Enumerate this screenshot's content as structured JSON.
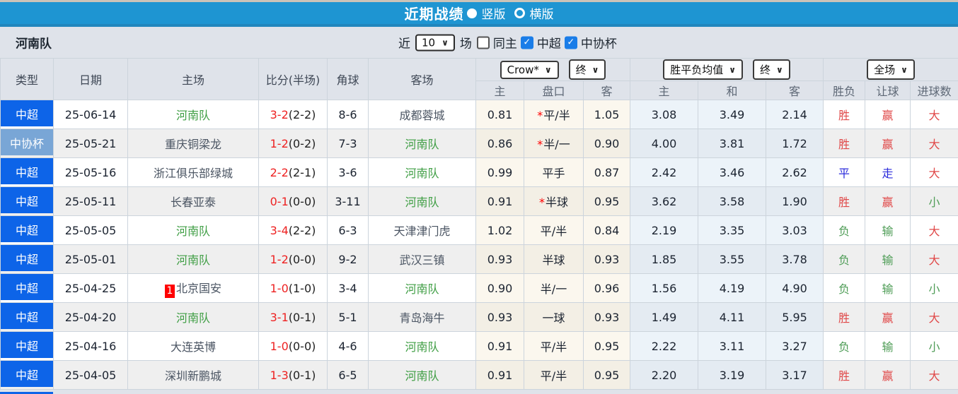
{
  "title_bar": {
    "title": "近期战绩",
    "layout_options": [
      {
        "label": "竖版",
        "selected": true
      },
      {
        "label": "横版",
        "selected": false
      }
    ]
  },
  "controls": {
    "team_name": "河南队",
    "recent_label": "近",
    "recent_count": "10",
    "matches_label": "场",
    "filters": [
      {
        "label": "同主",
        "checked": false
      },
      {
        "label": "中超",
        "checked": true
      },
      {
        "label": "中协杯",
        "checked": true
      }
    ]
  },
  "table": {
    "columns_left": [
      "类型",
      "日期",
      "主场",
      "比分(半场)",
      "角球",
      "客场"
    ],
    "odds_group": {
      "dropdown1": "Crow*",
      "dropdown2": "终",
      "subcolumns": [
        "主",
        "盘口",
        "客"
      ]
    },
    "avg_group": {
      "dropdown1": "胜平负均值",
      "dropdown2": "终",
      "subcolumns": [
        "主",
        "和",
        "客"
      ]
    },
    "result_group": {
      "dropdown": "全场",
      "subcolumns": [
        "胜负",
        "让球",
        "进球数"
      ]
    },
    "rows": [
      {
        "type": "中超",
        "type_style": "csl",
        "date": "25-06-14",
        "home": "河南队",
        "home_is_henan": true,
        "home_rank": "",
        "score": "3-2",
        "half_score": "(2-2)",
        "corners": "8-6",
        "away": "成都蓉城",
        "away_is_henan": false,
        "odds_home": "0.81",
        "handicap": "平/半",
        "handicap_star": true,
        "odds_away": "1.05",
        "avg_home": "3.08",
        "avg_draw": "3.49",
        "avg_away": "2.14",
        "result": "胜",
        "result_color": "red",
        "handicap_result": "赢",
        "handicap_result_color": "red",
        "goals_result": "大",
        "goals_result_color": "red"
      },
      {
        "type": "中协杯",
        "type_style": "cup",
        "date": "25-05-21",
        "home": "重庆铜梁龙",
        "home_is_henan": false,
        "home_rank": "",
        "score": "1-2",
        "half_score": "(0-2)",
        "corners": "7-3",
        "away": "河南队",
        "away_is_henan": true,
        "odds_home": "0.86",
        "handicap": "半/一",
        "handicap_star": true,
        "odds_away": "0.90",
        "avg_home": "4.00",
        "avg_draw": "3.81",
        "avg_away": "1.72",
        "result": "胜",
        "result_color": "red",
        "handicap_result": "赢",
        "handicap_result_color": "red",
        "goals_result": "大",
        "goals_result_color": "red"
      },
      {
        "type": "中超",
        "type_style": "csl",
        "date": "25-05-16",
        "home": "浙江俱乐部绿城",
        "home_is_henan": false,
        "home_rank": "",
        "score": "2-2",
        "half_score": "(2-1)",
        "corners": "3-6",
        "away": "河南队",
        "away_is_henan": true,
        "odds_home": "0.99",
        "handicap": "平手",
        "handicap_star": false,
        "odds_away": "0.87",
        "avg_home": "2.42",
        "avg_draw": "3.46",
        "avg_away": "2.62",
        "result": "平",
        "result_color": "blue",
        "handicap_result": "走",
        "handicap_result_color": "blue",
        "goals_result": "大",
        "goals_result_color": "red"
      },
      {
        "type": "中超",
        "type_style": "csl",
        "date": "25-05-11",
        "home": "长春亚泰",
        "home_is_henan": false,
        "home_rank": "",
        "score": "0-1",
        "half_score": "(0-0)",
        "corners": "3-11",
        "away": "河南队",
        "away_is_henan": true,
        "odds_home": "0.91",
        "handicap": "半球",
        "handicap_star": true,
        "odds_away": "0.95",
        "avg_home": "3.62",
        "avg_draw": "3.58",
        "avg_away": "1.90",
        "result": "胜",
        "result_color": "red",
        "handicap_result": "赢",
        "handicap_result_color": "red",
        "goals_result": "小",
        "goals_result_color": "green"
      },
      {
        "type": "中超",
        "type_style": "csl",
        "date": "25-05-05",
        "home": "河南队",
        "home_is_henan": true,
        "home_rank": "",
        "score": "3-4",
        "half_score": "(2-2)",
        "corners": "6-3",
        "away": "天津津门虎",
        "away_is_henan": false,
        "odds_home": "1.02",
        "handicap": "平/半",
        "handicap_star": false,
        "odds_away": "0.84",
        "avg_home": "2.19",
        "avg_draw": "3.35",
        "avg_away": "3.03",
        "result": "负",
        "result_color": "green",
        "handicap_result": "输",
        "handicap_result_color": "green",
        "goals_result": "大",
        "goals_result_color": "red"
      },
      {
        "type": "中超",
        "type_style": "csl",
        "date": "25-05-01",
        "home": "河南队",
        "home_is_henan": true,
        "home_rank": "",
        "score": "1-2",
        "half_score": "(0-0)",
        "corners": "9-2",
        "away": "武汉三镇",
        "away_is_henan": false,
        "odds_home": "0.93",
        "handicap": "半球",
        "handicap_star": false,
        "odds_away": "0.93",
        "avg_home": "1.85",
        "avg_draw": "3.55",
        "avg_away": "3.78",
        "result": "负",
        "result_color": "green",
        "handicap_result": "输",
        "handicap_result_color": "green",
        "goals_result": "大",
        "goals_result_color": "red"
      },
      {
        "type": "中超",
        "type_style": "csl",
        "date": "25-04-25",
        "home": "北京国安",
        "home_is_henan": false,
        "home_rank": "1",
        "score": "1-0",
        "half_score": "(1-0)",
        "corners": "3-4",
        "away": "河南队",
        "away_is_henan": true,
        "odds_home": "0.90",
        "handicap": "半/一",
        "handicap_star": false,
        "odds_away": "0.96",
        "avg_home": "1.56",
        "avg_draw": "4.19",
        "avg_away": "4.90",
        "result": "负",
        "result_color": "green",
        "handicap_result": "输",
        "handicap_result_color": "green",
        "goals_result": "小",
        "goals_result_color": "green"
      },
      {
        "type": "中超",
        "type_style": "csl",
        "date": "25-04-20",
        "home": "河南队",
        "home_is_henan": true,
        "home_rank": "",
        "score": "3-1",
        "half_score": "(0-1)",
        "corners": "5-1",
        "away": "青岛海牛",
        "away_is_henan": false,
        "odds_home": "0.93",
        "handicap": "一球",
        "handicap_star": false,
        "odds_away": "0.93",
        "avg_home": "1.49",
        "avg_draw": "4.11",
        "avg_away": "5.95",
        "result": "胜",
        "result_color": "red",
        "handicap_result": "赢",
        "handicap_result_color": "red",
        "goals_result": "大",
        "goals_result_color": "red"
      },
      {
        "type": "中超",
        "type_style": "csl",
        "date": "25-04-16",
        "home": "大连英博",
        "home_is_henan": false,
        "home_rank": "",
        "score": "1-0",
        "half_score": "(0-0)",
        "corners": "4-6",
        "away": "河南队",
        "away_is_henan": true,
        "odds_home": "0.91",
        "handicap": "平/半",
        "handicap_star": false,
        "odds_away": "0.95",
        "avg_home": "2.22",
        "avg_draw": "3.11",
        "avg_away": "3.27",
        "result": "负",
        "result_color": "green",
        "handicap_result": "输",
        "handicap_result_color": "green",
        "goals_result": "小",
        "goals_result_color": "green"
      },
      {
        "type": "中超",
        "type_style": "csl",
        "date": "25-04-05",
        "home": "深圳新鹏城",
        "home_is_henan": false,
        "home_rank": "",
        "score": "1-3",
        "half_score": "(0-1)",
        "corners": "6-5",
        "away": "河南队",
        "away_is_henan": true,
        "odds_home": "0.91",
        "handicap": "平/半",
        "handicap_star": false,
        "odds_away": "0.95",
        "avg_home": "2.20",
        "avg_draw": "3.19",
        "avg_away": "3.17",
        "result": "胜",
        "result_color": "red",
        "handicap_result": "赢",
        "handicap_result_color": "red",
        "goals_result": "大",
        "goals_result_color": "red"
      }
    ]
  },
  "colors": {
    "title_bar_bg": "#1e95d2",
    "league_csl_badge": "#0d64e8",
    "league_cup_badge": "#79a6d6",
    "henan_team_green": "#3f9e44",
    "score_red": "#ee2222",
    "win_red": "#e04848",
    "lose_green": "#4f9d57",
    "draw_blue": "#2b2bdb",
    "checkbox_blue": "#1a7de8",
    "odds_cell_cream": "#fbf7ee",
    "avg_cell_blue": "#ecf3f9"
  }
}
